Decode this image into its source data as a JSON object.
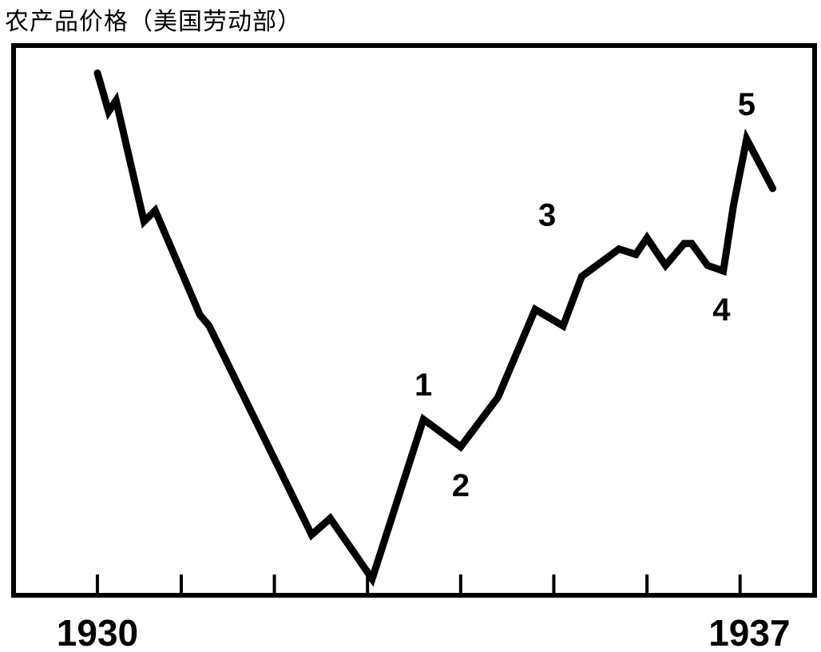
{
  "chart_data": {
    "type": "line",
    "title": "农产品价格（美国劳动部）",
    "xlabel": "",
    "ylabel": "",
    "x_tick_labels": [
      {
        "label": "1930",
        "x": 1930.0
      },
      {
        "label": "1937",
        "x": 1937.0
      }
    ],
    "minor_ticks": [
      1930.0,
      1930.9,
      1931.9,
      1932.9,
      1933.9,
      1934.9,
      1935.9,
      1936.9
    ],
    "xlim": [
      1929.1,
      1937.7
    ],
    "ylim": [
      0,
      100
    ],
    "grid": false,
    "series": [
      {
        "x": [
          1930.0,
          1930.12,
          1930.2,
          1930.5,
          1930.62,
          1931.1,
          1931.2,
          1932.3,
          1932.5,
          1932.95,
          1933.5,
          1933.9,
          1934.3,
          1934.7,
          1935.0,
          1935.2,
          1935.6,
          1935.78,
          1935.9,
          1936.1,
          1936.3,
          1936.38,
          1936.55,
          1936.72,
          1936.83,
          1936.97,
          1937.25
        ],
        "y": [
          95,
          88,
          90,
          68,
          70,
          51,
          49,
          11,
          14,
          3,
          32,
          27,
          36,
          52,
          49,
          58,
          63,
          62,
          65,
          60,
          64,
          64,
          60,
          59,
          71,
          83,
          74
        ]
      }
    ],
    "annotations": [
      {
        "text": "1",
        "x": 1933.5,
        "y": 32,
        "position": "above"
      },
      {
        "text": "2",
        "x": 1933.9,
        "y": 27,
        "position": "below"
      },
      {
        "text": "3",
        "x": 1935.0,
        "y": 64,
        "position": "above-left"
      },
      {
        "text": "4",
        "x": 1936.7,
        "y": 59,
        "position": "below"
      },
      {
        "text": "5",
        "x": 1936.97,
        "y": 83,
        "position": "above"
      }
    ]
  }
}
